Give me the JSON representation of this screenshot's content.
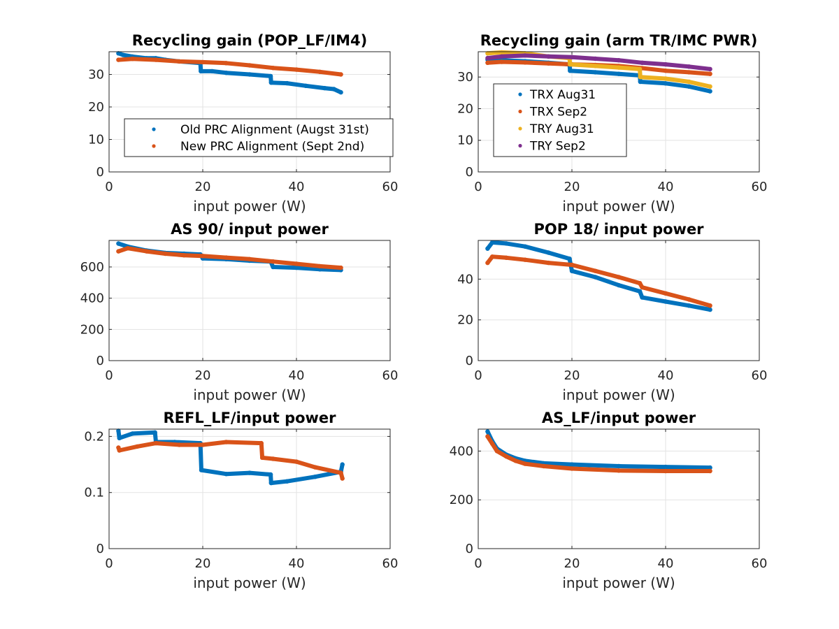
{
  "figure": {
    "background": "#ffffff"
  },
  "chart_data": [
    {
      "type": "scatter",
      "title": "Recycling gain (POP_LF/IM4)",
      "xlabel": "input power (W)",
      "ylabel": "",
      "xlim": [
        0,
        60
      ],
      "ylim": [
        0,
        37
      ],
      "xticks": [
        0,
        20,
        40,
        60
      ],
      "yticks": [
        0,
        10,
        20,
        30
      ],
      "grid": true,
      "legend": {
        "placement": "center-right",
        "entries": [
          "Old PRC Alignment (Augst 31st)",
          "New PRC Alignment (Sept 2nd)"
        ]
      },
      "series": [
        {
          "name": "Old PRC Alignment (Augst 31st)",
          "color": "#0072BD",
          "points": [
            [
              2,
              36.5
            ],
            [
              3,
              36
            ],
            [
              5,
              35.5
            ],
            [
              8,
              35
            ],
            [
              10,
              35
            ],
            [
              12,
              34.5
            ],
            [
              15,
              34
            ],
            [
              19.5,
              33.5
            ],
            [
              19.6,
              31
            ],
            [
              22,
              31
            ],
            [
              25,
              30.5
            ],
            [
              30,
              30
            ],
            [
              34.5,
              29.5
            ],
            [
              34.6,
              27.5
            ],
            [
              38,
              27.3
            ],
            [
              42,
              26.5
            ],
            [
              46,
              25.8
            ],
            [
              48,
              25.5
            ],
            [
              49.5,
              24.5
            ]
          ]
        },
        {
          "name": "New PRC Alignment (Sept 2nd)",
          "color": "#D95319",
          "points": [
            [
              2,
              34.5
            ],
            [
              5,
              34.8
            ],
            [
              10,
              34.5
            ],
            [
              15,
              34
            ],
            [
              20,
              33.8
            ],
            [
              25,
              33.5
            ],
            [
              30,
              32.8
            ],
            [
              35,
              32
            ],
            [
              40,
              31.5
            ],
            [
              45,
              30.8
            ],
            [
              49.5,
              30
            ]
          ]
        }
      ]
    },
    {
      "type": "scatter",
      "title": "Recycling gain (arm TR/IMC PWR)",
      "xlabel": "input power (W)",
      "ylabel": "",
      "xlim": [
        0,
        60
      ],
      "ylim": [
        0,
        38
      ],
      "xticks": [
        0,
        20,
        40,
        60
      ],
      "yticks": [
        0,
        10,
        20,
        30
      ],
      "grid": true,
      "legend": {
        "placement": "center-left",
        "entries": [
          "TRX Aug31",
          "TRX Sep2",
          "TRY Aug31",
          "TRY Sep2"
        ]
      },
      "series": [
        {
          "name": "TRX Aug31",
          "color": "#0072BD",
          "points": [
            [
              2,
              35.5
            ],
            [
              5,
              35.3
            ],
            [
              10,
              35
            ],
            [
              15,
              34.5
            ],
            [
              19.5,
              34
            ],
            [
              19.6,
              32
            ],
            [
              25,
              31.5
            ],
            [
              30,
              31
            ],
            [
              34.5,
              30.5
            ],
            [
              34.6,
              28.5
            ],
            [
              40,
              28
            ],
            [
              45,
              27
            ],
            [
              49.5,
              25.5
            ]
          ]
        },
        {
          "name": "TRX Sep2",
          "color": "#D95319",
          "points": [
            [
              2,
              34.5
            ],
            [
              5,
              34.8
            ],
            [
              10,
              34.6
            ],
            [
              15,
              34.3
            ],
            [
              20,
              34
            ],
            [
              25,
              33.8
            ],
            [
              30,
              33.5
            ],
            [
              35,
              32.8
            ],
            [
              40,
              32
            ],
            [
              45,
              31.5
            ],
            [
              49.5,
              31
            ]
          ]
        },
        {
          "name": "TRY Aug31",
          "color": "#EDB120",
          "points": [
            [
              2,
              37.5
            ],
            [
              5,
              37.8
            ],
            [
              10,
              37.5
            ],
            [
              15,
              36.5
            ],
            [
              19.5,
              36
            ],
            [
              19.6,
              34
            ],
            [
              25,
              33.5
            ],
            [
              30,
              33
            ],
            [
              34.5,
              32.5
            ],
            [
              34.6,
              30
            ],
            [
              40,
              29.5
            ],
            [
              45,
              28.5
            ],
            [
              49.5,
              27
            ]
          ]
        },
        {
          "name": "TRY Sep2",
          "color": "#7E2F8E",
          "points": [
            [
              2,
              36
            ],
            [
              5,
              36.5
            ],
            [
              10,
              36.8
            ],
            [
              15,
              36.5
            ],
            [
              20,
              36.3
            ],
            [
              25,
              35.8
            ],
            [
              30,
              35.3
            ],
            [
              35,
              34.5
            ],
            [
              40,
              34
            ],
            [
              45,
              33.3
            ],
            [
              49.5,
              32.5
            ]
          ]
        }
      ]
    },
    {
      "type": "scatter",
      "title": "AS 90/ input power",
      "xlabel": "input power (W)",
      "ylabel": "",
      "xlim": [
        0,
        60
      ],
      "ylim": [
        0,
        770
      ],
      "xticks": [
        0,
        20,
        40,
        60
      ],
      "yticks": [
        0,
        200,
        400,
        600
      ],
      "grid": true,
      "series": [
        {
          "color": "#0072BD",
          "points": [
            [
              2,
              750
            ],
            [
              4,
              730
            ],
            [
              8,
              705
            ],
            [
              12,
              690
            ],
            [
              16,
              685
            ],
            [
              19.5,
              680
            ],
            [
              20,
              655
            ],
            [
              25,
              650
            ],
            [
              30,
              640
            ],
            [
              34.5,
              635
            ],
            [
              35,
              600
            ],
            [
              40,
              595
            ],
            [
              45,
              585
            ],
            [
              49.5,
              580
            ]
          ]
        },
        {
          "color": "#D95319",
          "points": [
            [
              2,
              700
            ],
            [
              4,
              720
            ],
            [
              8,
              700
            ],
            [
              12,
              685
            ],
            [
              16,
              675
            ],
            [
              20,
              670
            ],
            [
              25,
              660
            ],
            [
              30,
              650
            ],
            [
              35,
              635
            ],
            [
              40,
              620
            ],
            [
              45,
              605
            ],
            [
              49.5,
              595
            ]
          ]
        }
      ]
    },
    {
      "type": "scatter",
      "title": "POP 18/ input power",
      "xlabel": "input power (W)",
      "ylabel": "",
      "xlim": [
        0,
        60
      ],
      "ylim": [
        0,
        59
      ],
      "xticks": [
        0,
        20,
        40,
        60
      ],
      "yticks": [
        0,
        20,
        40
      ],
      "grid": true,
      "series": [
        {
          "color": "#0072BD",
          "points": [
            [
              2,
              55
            ],
            [
              3,
              58
            ],
            [
              6,
              57.5
            ],
            [
              10,
              56
            ],
            [
              15,
              53
            ],
            [
              19.5,
              50
            ],
            [
              20,
              44
            ],
            [
              25,
              41
            ],
            [
              30,
              37
            ],
            [
              34.5,
              34
            ],
            [
              35,
              31
            ],
            [
              40,
              29
            ],
            [
              45,
              27
            ],
            [
              49.5,
              25
            ]
          ]
        },
        {
          "color": "#D95319",
          "points": [
            [
              2,
              48
            ],
            [
              3,
              51
            ],
            [
              6,
              50.5
            ],
            [
              10,
              49.5
            ],
            [
              15,
              48
            ],
            [
              20,
              47
            ],
            [
              25,
              44
            ],
            [
              30,
              41
            ],
            [
              34.5,
              38
            ],
            [
              35,
              36
            ],
            [
              40,
              33
            ],
            [
              45,
              30
            ],
            [
              49.5,
              27
            ]
          ]
        }
      ]
    },
    {
      "type": "scatter",
      "title": "REFL_LF/input power",
      "xlabel": "input power (W)",
      "ylabel": "",
      "xlim": [
        0,
        60
      ],
      "ylim": [
        0,
        0.213
      ],
      "xticks": [
        0,
        20,
        40,
        60
      ],
      "yticks": [
        0,
        0.1,
        0.2
      ],
      "grid": true,
      "series": [
        {
          "color": "#0072BD",
          "points": [
            [
              2,
              0.21
            ],
            [
              2.2,
              0.197
            ],
            [
              5,
              0.205
            ],
            [
              9.8,
              0.207
            ],
            [
              10,
              0.19
            ],
            [
              14,
              0.19
            ],
            [
              19.5,
              0.188
            ],
            [
              19.7,
              0.14
            ],
            [
              25,
              0.133
            ],
            [
              30,
              0.135
            ],
            [
              34.5,
              0.132
            ],
            [
              34.6,
              0.117
            ],
            [
              38,
              0.12
            ],
            [
              44,
              0.128
            ],
            [
              49.5,
              0.137
            ],
            [
              49.8,
              0.15
            ]
          ]
        },
        {
          "color": "#D95319",
          "points": [
            [
              2,
              0.18
            ],
            [
              2.2,
              0.175
            ],
            [
              6,
              0.182
            ],
            [
              10,
              0.188
            ],
            [
              15,
              0.185
            ],
            [
              20,
              0.185
            ],
            [
              25,
              0.19
            ],
            [
              32.5,
              0.188
            ],
            [
              32.7,
              0.162
            ],
            [
              35,
              0.16
            ],
            [
              40,
              0.155
            ],
            [
              44,
              0.145
            ],
            [
              49.5,
              0.135
            ],
            [
              49.8,
              0.125
            ]
          ]
        }
      ]
    },
    {
      "type": "scatter",
      "title": "AS_LF/input power",
      "xlabel": "input power (W)",
      "ylabel": "",
      "xlim": [
        0,
        60
      ],
      "ylim": [
        0,
        490
      ],
      "xticks": [
        0,
        20,
        40,
        60
      ],
      "yticks": [
        0,
        200,
        400
      ],
      "grid": true,
      "series": [
        {
          "color": "#0072BD",
          "points": [
            [
              2,
              480
            ],
            [
              3,
              440
            ],
            [
              4,
              410
            ],
            [
              6,
              385
            ],
            [
              8,
              370
            ],
            [
              10,
              360
            ],
            [
              14,
              350
            ],
            [
              20,
              345
            ],
            [
              30,
              338
            ],
            [
              40,
              335
            ],
            [
              49.5,
              332
            ]
          ]
        },
        {
          "color": "#D95319",
          "points": [
            [
              2,
              460
            ],
            [
              3,
              430
            ],
            [
              4,
              400
            ],
            [
              6,
              378
            ],
            [
              8,
              360
            ],
            [
              10,
              348
            ],
            [
              14,
              338
            ],
            [
              20,
              328
            ],
            [
              30,
              320
            ],
            [
              40,
              318
            ],
            [
              49.5,
              318
            ]
          ]
        }
      ]
    }
  ]
}
